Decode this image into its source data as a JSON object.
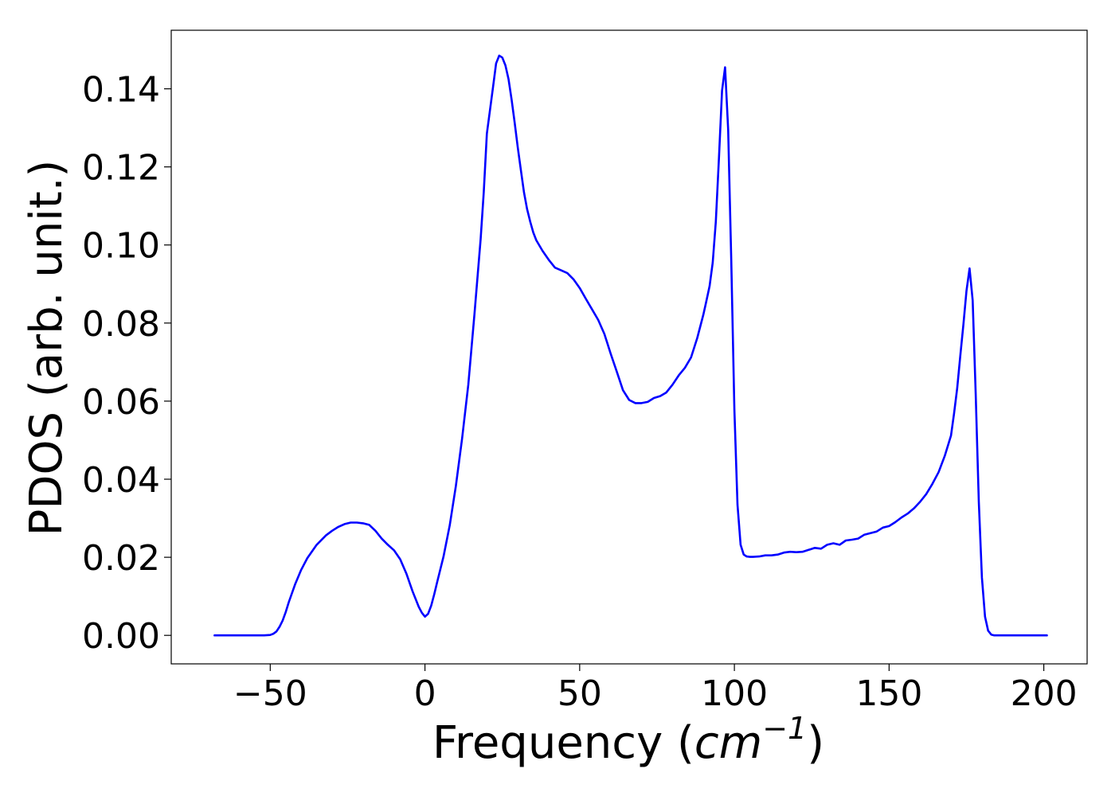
{
  "chart_data": {
    "type": "line",
    "title": "",
    "xlabel_main": "Frequency (",
    "xlabel_unit": "cm",
    "xlabel_exp": "−1",
    "xlabel_close": ")",
    "ylabel": "PDOS (arb. unit.)",
    "xlim": [
      -82,
      214
    ],
    "ylim": [
      -0.0073,
      0.155
    ],
    "x_ticks": [
      -50,
      0,
      50,
      100,
      150,
      200
    ],
    "x_tick_labels": [
      "−50",
      "0",
      "50",
      "100",
      "150",
      "200"
    ],
    "y_ticks": [
      0.0,
      0.02,
      0.04,
      0.06,
      0.08,
      0.1,
      0.12,
      0.14
    ],
    "y_tick_labels": [
      "0.00",
      "0.02",
      "0.04",
      "0.06",
      "0.08",
      "0.10",
      "0.12",
      "0.14"
    ],
    "grid": false,
    "line_color": "#0000ff",
    "series": [
      {
        "x": [
          -68,
          -60,
          -55,
          -52,
          -50,
          -49,
          -48,
          -47,
          -46,
          -45,
          -44,
          -42,
          -40,
          -38,
          -35,
          -32,
          -30,
          -28,
          -26,
          -24,
          -22,
          -20,
          -18,
          -16,
          -14,
          -12,
          -10,
          -8,
          -6,
          -4,
          -2,
          -1,
          0,
          1,
          2,
          3,
          4,
          6,
          8,
          10,
          12,
          14,
          16,
          18,
          19,
          20,
          21,
          22,
          23,
          24,
          25,
          26,
          27,
          28,
          29,
          30,
          31,
          32,
          33,
          34,
          35,
          36,
          38,
          40,
          42,
          44,
          46,
          48,
          50,
          52,
          54,
          56,
          58,
          60,
          62,
          64,
          66,
          68,
          70,
          72,
          74,
          76,
          78,
          80,
          82,
          84,
          86,
          88,
          90,
          91,
          92,
          93,
          94,
          95,
          96,
          97,
          98,
          99,
          100,
          101,
          102,
          103,
          104,
          105,
          106,
          108,
          110,
          112,
          114,
          116,
          118,
          120,
          122,
          124,
          126,
          128,
          130,
          132,
          134,
          136,
          138,
          140,
          142,
          144,
          146,
          148,
          150,
          152,
          154,
          156,
          158,
          160,
          162,
          164,
          166,
          168,
          170,
          171,
          172,
          173,
          174,
          175,
          176,
          177,
          178,
          179,
          180,
          181,
          182,
          183,
          184,
          186,
          190,
          195,
          201
        ],
        "y": [
          0.0,
          0.0,
          0.0,
          0.0,
          0.0001,
          0.0004,
          0.001,
          0.0022,
          0.0038,
          0.006,
          0.0085,
          0.013,
          0.0168,
          0.0198,
          0.0232,
          0.0256,
          0.0268,
          0.0278,
          0.0285,
          0.0289,
          0.0289,
          0.0287,
          0.0283,
          0.0268,
          0.0248,
          0.0232,
          0.0218,
          0.0195,
          0.0158,
          0.0113,
          0.0073,
          0.0058,
          0.0048,
          0.0055,
          0.0076,
          0.0105,
          0.0138,
          0.0202,
          0.0282,
          0.0383,
          0.0504,
          0.0642,
          0.0822,
          0.1015,
          0.1135,
          0.1285,
          0.1345,
          0.1405,
          0.1465,
          0.1485,
          0.148,
          0.146,
          0.1425,
          0.1372,
          0.1312,
          0.125,
          0.1192,
          0.1135,
          0.1092,
          0.106,
          0.1032,
          0.1012,
          0.0985,
          0.0962,
          0.0942,
          0.0935,
          0.0928,
          0.0912,
          0.089,
          0.0862,
          0.0835,
          0.0808,
          0.0772,
          0.0722,
          0.0675,
          0.0628,
          0.0603,
          0.0595,
          0.0595,
          0.0598,
          0.0608,
          0.0613,
          0.0622,
          0.0642,
          0.0666,
          0.0685,
          0.0712,
          0.0762,
          0.0822,
          0.0858,
          0.0895,
          0.0955,
          0.106,
          0.1222,
          0.1395,
          0.1455,
          0.1295,
          0.0958,
          0.0578,
          0.0335,
          0.0232,
          0.0207,
          0.0202,
          0.0201,
          0.0201,
          0.0202,
          0.0205,
          0.0205,
          0.0207,
          0.0212,
          0.0214,
          0.0213,
          0.0214,
          0.0219,
          0.0224,
          0.0222,
          0.0232,
          0.0236,
          0.0232,
          0.0243,
          0.0245,
          0.0248,
          0.0258,
          0.0262,
          0.0266,
          0.0276,
          0.028,
          0.029,
          0.0302,
          0.0312,
          0.0325,
          0.0342,
          0.0362,
          0.0388,
          0.0418,
          0.046,
          0.0512,
          0.0568,
          0.0632,
          0.0715,
          0.0795,
          0.0882,
          0.094,
          0.0858,
          0.0618,
          0.0342,
          0.0148,
          0.0048,
          0.0012,
          0.0002,
          0.0,
          0.0,
          0.0,
          0.0,
          0.0
        ]
      }
    ]
  }
}
